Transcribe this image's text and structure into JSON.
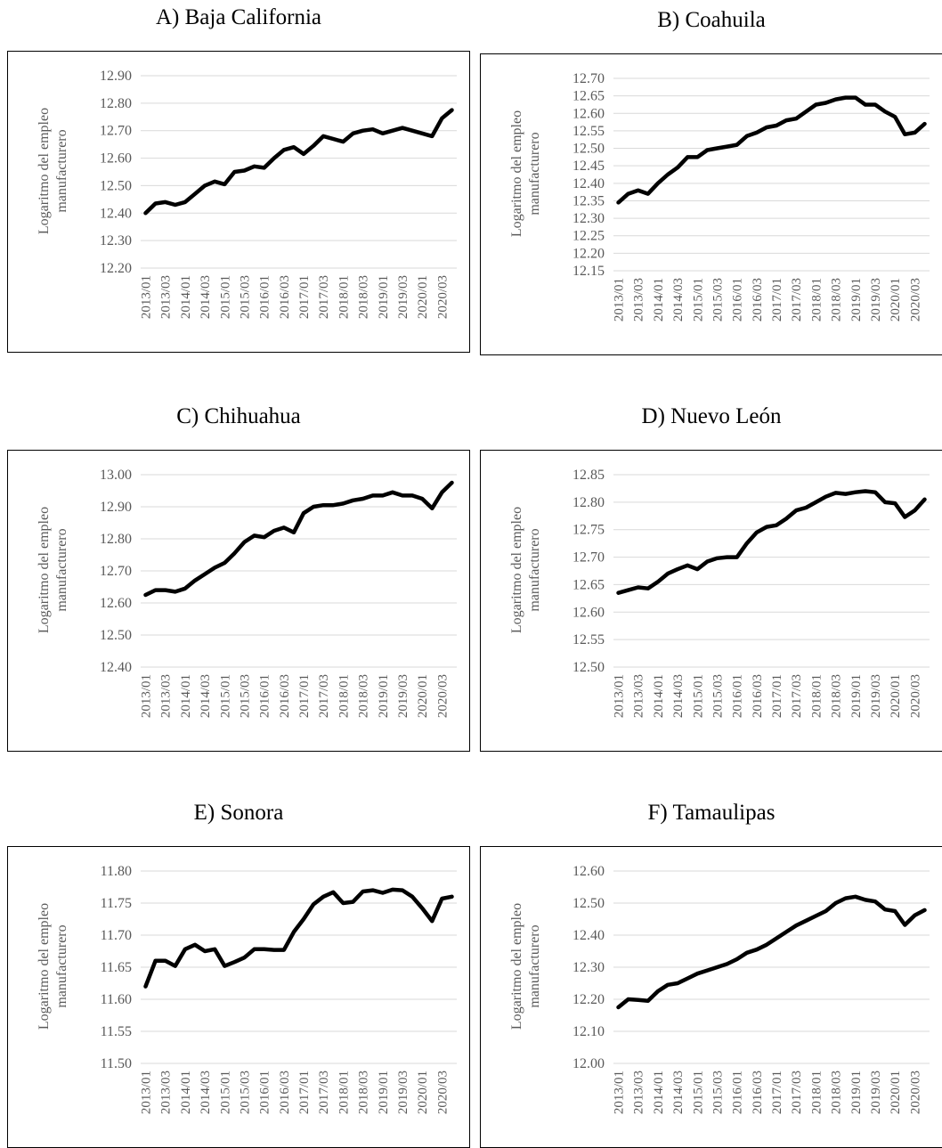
{
  "chart_data": [
    {
      "type": "line",
      "title": "A)  Baja California",
      "ylabel": [
        "Logaritmo del empleo",
        "manufacturero"
      ],
      "categories": [
        "2013/01",
        null,
        "2013/03",
        null,
        "2014/01",
        null,
        "2014/03",
        null,
        "2015/01",
        null,
        "2015/03",
        null,
        "2016/01",
        null,
        "2016/03",
        null,
        "2017/01",
        null,
        "2017/03",
        null,
        "2018/01",
        null,
        "2018/03",
        null,
        "2019/01",
        null,
        "2019/03",
        null,
        "2020/01",
        null,
        "2020/03",
        null
      ],
      "values": [
        12.4,
        12.435,
        12.44,
        12.43,
        12.44,
        12.47,
        12.5,
        12.515,
        12.505,
        12.55,
        12.555,
        12.57,
        12.565,
        12.6,
        12.63,
        12.64,
        12.615,
        12.645,
        12.68,
        12.67,
        12.66,
        12.69,
        12.7,
        12.705,
        12.69,
        12.7,
        12.71,
        12.7,
        12.69,
        12.68,
        12.745,
        12.775
      ],
      "color": "#000000",
      "ylim": [
        12.2,
        12.9
      ],
      "yticks": [
        {
          "value": 12.2,
          "label": "12.20"
        },
        {
          "value": 12.3,
          "label": "12.30"
        },
        {
          "value": 12.4,
          "label": "12.40"
        },
        {
          "value": 12.5,
          "label": "12.50"
        },
        {
          "value": 12.6,
          "label": "12.60"
        },
        {
          "value": 12.7,
          "label": "12.70"
        },
        {
          "value": 12.8,
          "label": "12.80"
        },
        {
          "value": 12.9,
          "label": "12.90"
        }
      ],
      "grid": true
    },
    {
      "type": "line",
      "title": "B) Coahuila",
      "ylabel": [
        "Logaritmo del empleo",
        "manufacturero"
      ],
      "categories": [
        "2013/01",
        null,
        "2013/03",
        null,
        "2014/01",
        null,
        "2014/03",
        null,
        "2015/01",
        null,
        "2015/03",
        null,
        "2016/01",
        null,
        "2016/03",
        null,
        "2017/01",
        null,
        "2017/03",
        null,
        "2018/01",
        null,
        "2018/03",
        null,
        "2019/01",
        null,
        "2019/03",
        null,
        "2020/01",
        null,
        "2020/03",
        null
      ],
      "values": [
        12.345,
        12.37,
        12.38,
        12.37,
        12.4,
        12.425,
        12.445,
        12.475,
        12.475,
        12.495,
        12.5,
        12.505,
        12.51,
        12.535,
        12.545,
        12.56,
        12.565,
        12.58,
        12.585,
        12.605,
        12.625,
        12.63,
        12.64,
        12.645,
        12.645,
        12.625,
        12.625,
        12.605,
        12.59,
        12.54,
        12.545,
        12.57
      ],
      "color": "#000000",
      "ylim": [
        12.15,
        12.7
      ],
      "yticks": [
        12.15,
        {
          "value": 12.2,
          "label": "12.20"
        },
        12.25,
        {
          "value": 12.3,
          "label": "12.30"
        },
        12.35,
        {
          "value": 12.4,
          "label": "12.40"
        },
        12.45,
        {
          "value": 12.5,
          "label": "12.50"
        },
        12.55,
        {
          "value": 12.6,
          "label": "12.60"
        },
        12.65,
        {
          "value": 12.7,
          "label": "12.70"
        }
      ],
      "grid": true
    },
    {
      "type": "line",
      "title": "C)  Chihuahua",
      "ylabel": [
        "Logaritmo del empleo",
        "manufacturero"
      ],
      "categories": [
        "2013/01",
        null,
        "2013/03",
        null,
        "2014/01",
        null,
        "2014/03",
        null,
        "2015/01",
        null,
        "2015/03",
        null,
        "2016/01",
        null,
        "2016/03",
        null,
        "2017/01",
        null,
        "2017/03",
        null,
        "2018/01",
        null,
        "2018/03",
        null,
        "2019/01",
        null,
        "2019/03",
        null,
        "2020/01",
        null,
        "2020/03",
        null
      ],
      "values": [
        12.625,
        12.64,
        12.64,
        12.635,
        12.645,
        12.67,
        12.69,
        12.71,
        12.725,
        12.755,
        12.79,
        12.81,
        12.805,
        12.825,
        12.835,
        12.82,
        12.88,
        12.9,
        12.905,
        12.905,
        12.91,
        12.92,
        12.925,
        12.935,
        12.935,
        12.945,
        12.935,
        12.935,
        12.925,
        12.895,
        12.945,
        12.975
      ],
      "color": "#000000",
      "ylim": [
        12.4,
        13.0
      ],
      "yticks": [
        {
          "value": 12.4,
          "label": "12.40"
        },
        {
          "value": 12.5,
          "label": "12.50"
        },
        {
          "value": 12.6,
          "label": "12.60"
        },
        {
          "value": 12.7,
          "label": "12.70"
        },
        {
          "value": 12.8,
          "label": "12.80"
        },
        {
          "value": 12.9,
          "label": "12.90"
        },
        {
          "value": 13.0,
          "label": "13.00"
        }
      ],
      "grid": true
    },
    {
      "type": "line",
      "title": "D) Nuevo León",
      "ylabel": [
        "Logaritmo del empleo",
        "manufacturero"
      ],
      "categories": [
        "2013/01",
        null,
        "2013/03",
        null,
        "2014/01",
        null,
        "2014/03",
        null,
        "2015/01",
        null,
        "2015/03",
        null,
        "2016/01",
        null,
        "2016/03",
        null,
        "2017/01",
        null,
        "2017/03",
        null,
        "2018/01",
        null,
        "2018/03",
        null,
        "2019/01",
        null,
        "2019/03",
        null,
        "2020/01",
        null,
        "2020/03",
        null
      ],
      "values": [
        12.635,
        12.64,
        12.645,
        12.643,
        12.655,
        12.67,
        12.678,
        12.685,
        12.678,
        12.692,
        12.698,
        12.7,
        12.7,
        12.725,
        12.745,
        12.755,
        12.758,
        12.77,
        12.785,
        12.79,
        12.8,
        12.81,
        12.817,
        12.815,
        12.818,
        12.82,
        12.818,
        12.8,
        12.798,
        12.773,
        12.785,
        12.805
      ],
      "color": "#000000",
      "ylim": [
        12.5,
        12.85
      ],
      "yticks": [
        {
          "value": 12.5,
          "label": "12.50"
        },
        12.55,
        {
          "value": 12.6,
          "label": "12.60"
        },
        12.65,
        {
          "value": 12.7,
          "label": "12.70"
        },
        12.75,
        {
          "value": 12.8,
          "label": "12.80"
        },
        12.85
      ],
      "grid": true
    },
    {
      "type": "line",
      "title": "E)  Sonora",
      "ylabel": [
        "Logaritmo del empleo",
        "manufacturero"
      ],
      "categories": [
        "2013/01",
        null,
        "2013/03",
        null,
        "2014/01",
        null,
        "2014/03",
        null,
        "2015/01",
        null,
        "2015/03",
        null,
        "2016/01",
        null,
        "2016/03",
        null,
        "2017/01",
        null,
        "2017/03",
        null,
        "2018/01",
        null,
        "2018/03",
        null,
        "2019/01",
        null,
        "2019/03",
        null,
        "2020/01",
        null,
        "2020/03",
        null
      ],
      "values": [
        11.62,
        11.66,
        11.66,
        11.652,
        11.678,
        11.685,
        11.675,
        11.678,
        11.652,
        11.658,
        11.665,
        11.678,
        11.678,
        11.677,
        11.677,
        11.705,
        11.725,
        11.748,
        11.76,
        11.767,
        11.75,
        11.752,
        11.768,
        11.77,
        11.766,
        11.771,
        11.77,
        11.76,
        11.742,
        11.722,
        11.757,
        11.76
      ],
      "color": "#000000",
      "ylim": [
        11.5,
        11.8
      ],
      "yticks": [
        {
          "value": 11.5,
          "label": "11.50"
        },
        11.55,
        {
          "value": 11.6,
          "label": "11.60"
        },
        11.65,
        {
          "value": 11.7,
          "label": "11.70"
        },
        11.75,
        {
          "value": 11.8,
          "label": "11.80"
        }
      ],
      "grid": true
    },
    {
      "type": "line",
      "title": "F) Tamaulipas",
      "ylabel": [
        "Logaritmo del empleo",
        "manufacturero"
      ],
      "categories": [
        "2013/01",
        null,
        "2013/03",
        null,
        "2014/01",
        null,
        "2014/03",
        null,
        "2015/01",
        null,
        "2015/03",
        null,
        "2016/01",
        null,
        "2016/03",
        null,
        "2017/01",
        null,
        "2017/03",
        null,
        "2018/01",
        null,
        "2018/03",
        null,
        "2019/01",
        null,
        "2019/03",
        null,
        "2020/01",
        null,
        "2020/03",
        null
      ],
      "values": [
        12.175,
        12.2,
        12.198,
        12.195,
        12.225,
        12.245,
        12.25,
        12.265,
        12.28,
        12.29,
        12.3,
        12.31,
        12.325,
        12.345,
        12.355,
        12.37,
        12.39,
        12.41,
        12.43,
        12.445,
        12.46,
        12.475,
        12.5,
        12.515,
        12.52,
        12.51,
        12.505,
        12.48,
        12.475,
        12.432,
        12.462,
        12.478
      ],
      "color": "#000000",
      "ylim": [
        12.0,
        12.6
      ],
      "yticks": [
        {
          "value": 12.0,
          "label": "12.00"
        },
        {
          "value": 12.1,
          "label": "12.10"
        },
        {
          "value": 12.2,
          "label": "12.20"
        },
        {
          "value": 12.3,
          "label": "12.30"
        },
        {
          "value": 12.4,
          "label": "12.40"
        },
        {
          "value": 12.5,
          "label": "12.50"
        },
        {
          "value": 12.6,
          "label": "12.60"
        }
      ],
      "grid": true
    }
  ]
}
